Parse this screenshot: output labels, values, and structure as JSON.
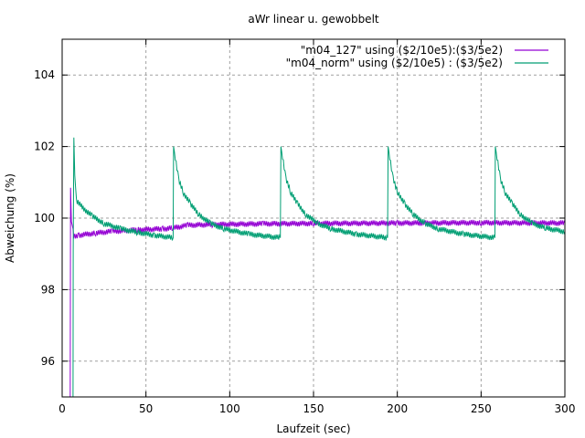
{
  "chart_data": {
    "type": "line",
    "title": "aWr linear u. gewobbelt",
    "xlabel": "Laufzeit (sec)",
    "ylabel": "Abweichung (%)",
    "xlim": [
      0,
      300
    ],
    "ylim": [
      95,
      105
    ],
    "xticks": [
      0,
      50,
      100,
      150,
      200,
      250,
      300
    ],
    "yticks": [
      96,
      98,
      100,
      102,
      104
    ],
    "grid": true,
    "legend_position": "top-right",
    "noise_amplitude": 0.08,
    "series": [
      {
        "name": "\"m04_127\" using ($2/10e5):($3/5e2)",
        "color": "#9400d3",
        "points": [
          [
            4.8,
            95
          ],
          [
            5,
            100.85
          ],
          [
            5.5,
            99.9
          ],
          [
            6.5,
            99.7
          ],
          [
            7,
            99.5
          ],
          [
            10,
            99.52
          ],
          [
            20,
            99.58
          ],
          [
            30,
            99.63
          ],
          [
            45,
            99.67
          ],
          [
            60,
            99.7
          ],
          [
            66,
            99.72
          ],
          [
            75,
            99.8
          ],
          [
            90,
            99.82
          ],
          [
            120,
            99.84
          ],
          [
            150,
            99.85
          ],
          [
            200,
            99.86
          ],
          [
            250,
            99.87
          ],
          [
            300,
            99.86
          ]
        ]
      },
      {
        "name": "\"m04_norm\" using ($2/10e5) : ($3/5e2)",
        "color": "#009e73",
        "points": [
          [
            6.5,
            95
          ],
          [
            6.6,
            99.1
          ],
          [
            7,
            102.25
          ],
          [
            7.5,
            101.2
          ],
          [
            8.5,
            100.5
          ],
          [
            12,
            100.3
          ],
          [
            18,
            100.05
          ],
          [
            25,
            99.85
          ],
          [
            35,
            99.7
          ],
          [
            45,
            99.6
          ],
          [
            55,
            99.52
          ],
          [
            66.2,
            99.45
          ],
          [
            66.5,
            102.0
          ],
          [
            67.5,
            101.7
          ],
          [
            69.5,
            101.1
          ],
          [
            72.5,
            100.7
          ],
          [
            76.5,
            100.4
          ],
          [
            81.5,
            100.1
          ],
          [
            88.5,
            99.85
          ],
          [
            96.5,
            99.7
          ],
          [
            111.5,
            99.55
          ],
          [
            130.2,
            99.45
          ],
          [
            130.5,
            102.0
          ],
          [
            131.5,
            101.7
          ],
          [
            133.5,
            101.1
          ],
          [
            136.5,
            100.7
          ],
          [
            140.5,
            100.4
          ],
          [
            145.5,
            100.1
          ],
          [
            152.5,
            99.85
          ],
          [
            160.5,
            99.7
          ],
          [
            175.5,
            99.55
          ],
          [
            194.2,
            99.45
          ],
          [
            194.5,
            102.0
          ],
          [
            195.5,
            101.7
          ],
          [
            197.5,
            101.1
          ],
          [
            200.5,
            100.7
          ],
          [
            204.5,
            100.4
          ],
          [
            209.5,
            100.1
          ],
          [
            216.5,
            99.85
          ],
          [
            224.5,
            99.7
          ],
          [
            239.5,
            99.55
          ],
          [
            258.2,
            99.45
          ],
          [
            258.5,
            102.0
          ],
          [
            259.5,
            101.7
          ],
          [
            261.5,
            101.1
          ],
          [
            264.5,
            100.7
          ],
          [
            268.5,
            100.4
          ],
          [
            273.5,
            100.1
          ],
          [
            280.5,
            99.85
          ],
          [
            288.5,
            99.72
          ],
          [
            300,
            99.62
          ]
        ]
      }
    ]
  }
}
